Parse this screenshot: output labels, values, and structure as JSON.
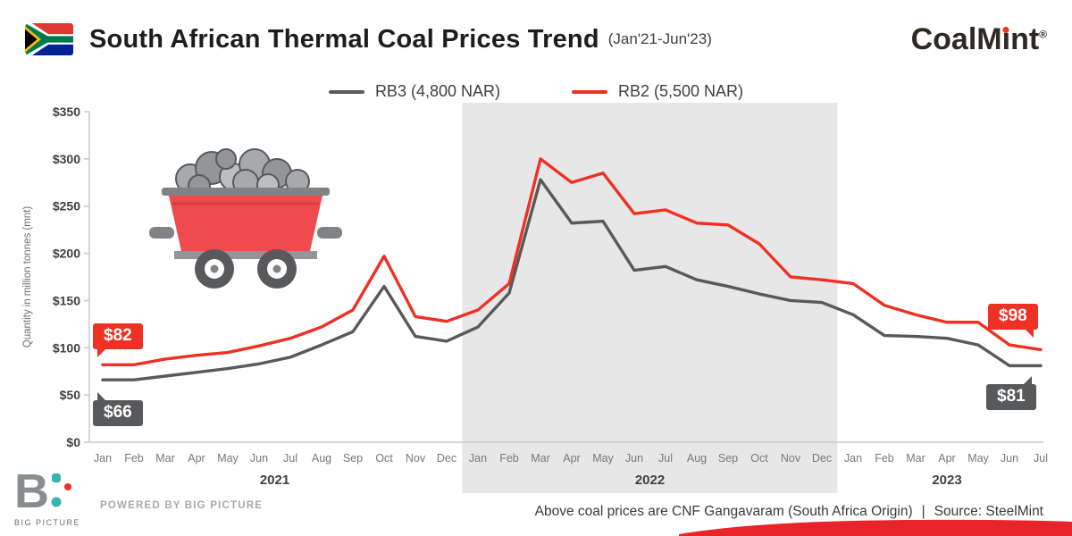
{
  "header": {
    "title": "South African Thermal Coal Prices Trend",
    "subtitle": "(Jan'21-Jun'23)",
    "brand": {
      "pre": "CoalM",
      "i_base": "ı",
      "post": "nt",
      "reg": "®"
    }
  },
  "legend": [
    {
      "label": "RB3 (4,800 NAR)",
      "color": "#58595b"
    },
    {
      "label": "RB2 (5,500 NAR)",
      "color": "#ee3124"
    }
  ],
  "chart_data": {
    "type": "line",
    "title": "South African Thermal Coal Prices Trend (Jan'21-Jun'23)",
    "ylabel": "Quantity in million tonnes (mnt)",
    "ylim": [
      0,
      350
    ],
    "ytick_step": 50,
    "yticks": [
      "$0",
      "$50",
      "$100",
      "$150",
      "$200",
      "$250",
      "$300",
      "$350"
    ],
    "x": [
      "Jan",
      "Feb",
      "Mar",
      "Apr",
      "May",
      "Jun",
      "Jul",
      "Aug",
      "Sep",
      "Oct",
      "Nov",
      "Dec",
      "Jan",
      "Feb",
      "Mar",
      "Apr",
      "May",
      "Jun",
      "Jul",
      "Aug",
      "Sep",
      "Oct",
      "Nov",
      "Dec",
      "Jan",
      "Feb",
      "Mar",
      "Apr",
      "May",
      "Jun",
      "Jul"
    ],
    "year_groups": [
      {
        "label": "2021",
        "start": 0,
        "end": 11
      },
      {
        "label": "2022",
        "start": 12,
        "end": 23
      },
      {
        "label": "2023",
        "start": 24,
        "end": 30
      }
    ],
    "shaded_region": {
      "start": 12,
      "end": 23,
      "color": "#e7e7e8"
    },
    "grid": false,
    "legend_position": "top-center",
    "series": [
      {
        "name": "RB3 (4,800 NAR)",
        "color": "#58595b",
        "values": [
          66,
          66,
          70,
          74,
          78,
          83,
          90,
          103,
          117,
          165,
          112,
          107,
          122,
          158,
          278,
          232,
          234,
          182,
          186,
          172,
          165,
          157,
          150,
          148,
          135,
          113,
          112,
          110,
          103,
          81,
          81
        ]
      },
      {
        "name": "RB2 (5,500 NAR)",
        "color": "#ee3124",
        "values": [
          82,
          82,
          88,
          92,
          95,
          102,
          110,
          122,
          140,
          197,
          133,
          128,
          140,
          168,
          300,
          275,
          285,
          242,
          246,
          232,
          230,
          210,
          175,
          172,
          168,
          145,
          135,
          127,
          127,
          103,
          98
        ]
      }
    ],
    "callouts": [
      {
        "text": "$82",
        "series": "RB2 (5,500 NAR)",
        "position": "start",
        "color": "#ee3124"
      },
      {
        "text": "$66",
        "series": "RB3 (4,800 NAR)",
        "position": "start",
        "color": "#58595b"
      },
      {
        "text": "$98",
        "series": "RB2 (5,500 NAR)",
        "position": "end",
        "color": "#ee3124"
      },
      {
        "text": "$81",
        "series": "RB3 (4,800 NAR)",
        "position": "end",
        "color": "#58595b"
      }
    ]
  },
  "footer": {
    "logo_letter": "B",
    "logo_text": "Big Picture",
    "powered_by": "POWERED BY BIG PICTURE",
    "note": "Above coal prices are CNF Gangavaram (South Africa Origin)",
    "separator": "|",
    "source": "Source: SteelMint"
  }
}
